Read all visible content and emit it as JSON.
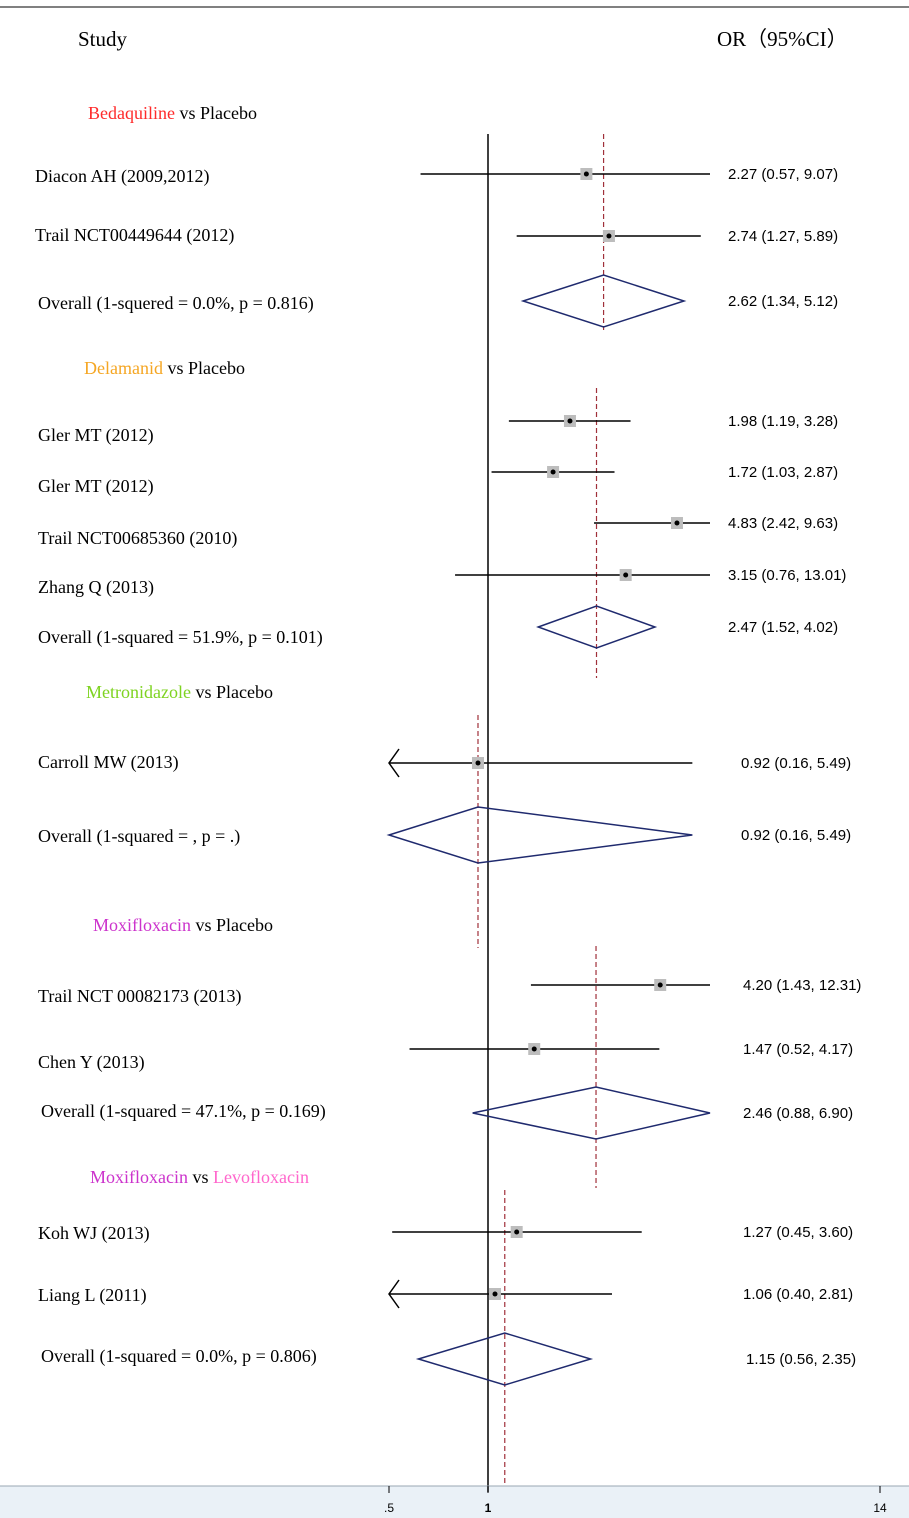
{
  "chart_data": {
    "type": "forest",
    "headers": {
      "study": "Study",
      "or": "OR（95%CI）"
    },
    "x_axis": {
      "ticks": [
        ".5",
        "1",
        "14"
      ],
      "tick_values": [
        0.5,
        1,
        14
      ],
      "scale": "log"
    },
    "colors": {
      "line": "#000000",
      "diamond": "#1f2a6e",
      "pooled_line": "#a0303a",
      "box": "#bdbdbd",
      "axis_band": "#eaf1f7"
    },
    "groups": [
      {
        "label_parts": [
          {
            "text": "Bedaquiline",
            "color": "#ff2a2a"
          },
          {
            "text": " vs Placebo",
            "color": "#000000"
          }
        ],
        "studies": [
          {
            "name": "Diacon AH (2009,2012)",
            "or": 2.27,
            "lo": 0.57,
            "hi": 9.07,
            "ci_text": "2.27 (0.57, 9.07)"
          },
          {
            "name": "Trail NCT00449644 (2012)",
            "or": 2.74,
            "lo": 1.27,
            "hi": 5.89,
            "ci_text": "2.74 (1.27, 5.89)"
          }
        ],
        "overall": {
          "name": "Overall (1-squered = 0.0%, p = 0.816)",
          "or": 2.62,
          "lo": 1.34,
          "hi": 5.12,
          "ci_text": "2.62 (1.34, 5.12)"
        }
      },
      {
        "label_parts": [
          {
            "text": "Delamanid",
            "color": "#f5a623"
          },
          {
            "text": " vs Placebo",
            "color": "#000000"
          }
        ],
        "studies": [
          {
            "name": "Gler MT (2012)",
            "or": 1.98,
            "lo": 1.19,
            "hi": 3.28,
            "ci_text": "1.98 (1.19, 3.28)"
          },
          {
            "name": "Gler MT (2012)",
            "or": 1.72,
            "lo": 1.03,
            "hi": 2.87,
            "ci_text": "1.72 (1.03, 2.87)"
          },
          {
            "name": "Trail NCT00685360 (2010)",
            "or": 4.83,
            "lo": 2.42,
            "hi": 9.63,
            "ci_text": "4.83 (2.42, 9.63)"
          },
          {
            "name": "Zhang Q (2013)",
            "or": 3.15,
            "lo": 0.76,
            "hi": 13.01,
            "ci_text": "3.15 (0.76, 13.01)"
          }
        ],
        "overall": {
          "name": "Overall (1-squared = 51.9%, p = 0.101)",
          "or": 2.47,
          "lo": 1.52,
          "hi": 4.02,
          "ci_text": "2.47 (1.52, 4.02)"
        }
      },
      {
        "label_parts": [
          {
            "text": "Metronidazole",
            "color": "#7ed321"
          },
          {
            "text": " vs Placebo",
            "color": "#000000"
          }
        ],
        "studies": [
          {
            "name": "Carroll MW (2013)",
            "or": 0.92,
            "lo": 0.16,
            "hi": 5.49,
            "ci_text": "0.92 (0.16, 5.49)"
          }
        ],
        "overall": {
          "name": "Overall (1-squared =      , p = .)",
          "or": 0.92,
          "lo": 0.16,
          "hi": 5.49,
          "ci_text": "0.92 (0.16, 5.49)"
        }
      },
      {
        "label_parts": [
          {
            "text": "Moxifloxacin",
            "color": "#cc33cc"
          },
          {
            "text": " vs Placebo",
            "color": "#000000"
          }
        ],
        "studies": [
          {
            "name": "Trail NCT 00082173 (2013)",
            "or": 4.2,
            "lo": 1.43,
            "hi": 12.31,
            "ci_text": "4.20 (1.43, 12.31)"
          },
          {
            "name": "Chen Y (2013)",
            "or": 1.47,
            "lo": 0.52,
            "hi": 4.17,
            "ci_text": "1.47 (0.52, 4.17)"
          }
        ],
        "overall": {
          "name": "Overall (1-squared = 47.1%, p = 0.169)",
          "or": 2.46,
          "lo": 0.88,
          "hi": 6.9,
          "ci_text": "2.46 (0.88, 6.90)"
        }
      },
      {
        "label_parts": [
          {
            "text": "Moxifloxacin",
            "color": "#cc33cc"
          },
          {
            "text": " vs ",
            "color": "#000000"
          },
          {
            "text": "Levofloxacin",
            "color": "#ff66cc"
          }
        ],
        "studies": [
          {
            "name": "Koh WJ (2013)",
            "or": 1.27,
            "lo": 0.45,
            "hi": 3.6,
            "ci_text": "1.27 (0.45, 3.60)"
          },
          {
            "name": "Liang L (2011)",
            "or": 1.06,
            "lo": 0.4,
            "hi": 2.81,
            "ci_text": "1.06 (0.40, 2.81)"
          }
        ],
        "overall": {
          "name": "Overall (1-squared = 0.0%, p = 0.806)",
          "or": 1.15,
          "lo": 0.56,
          "hi": 2.35,
          "ci_text": "1.15 (0.56, 2.35)"
        }
      }
    ]
  }
}
